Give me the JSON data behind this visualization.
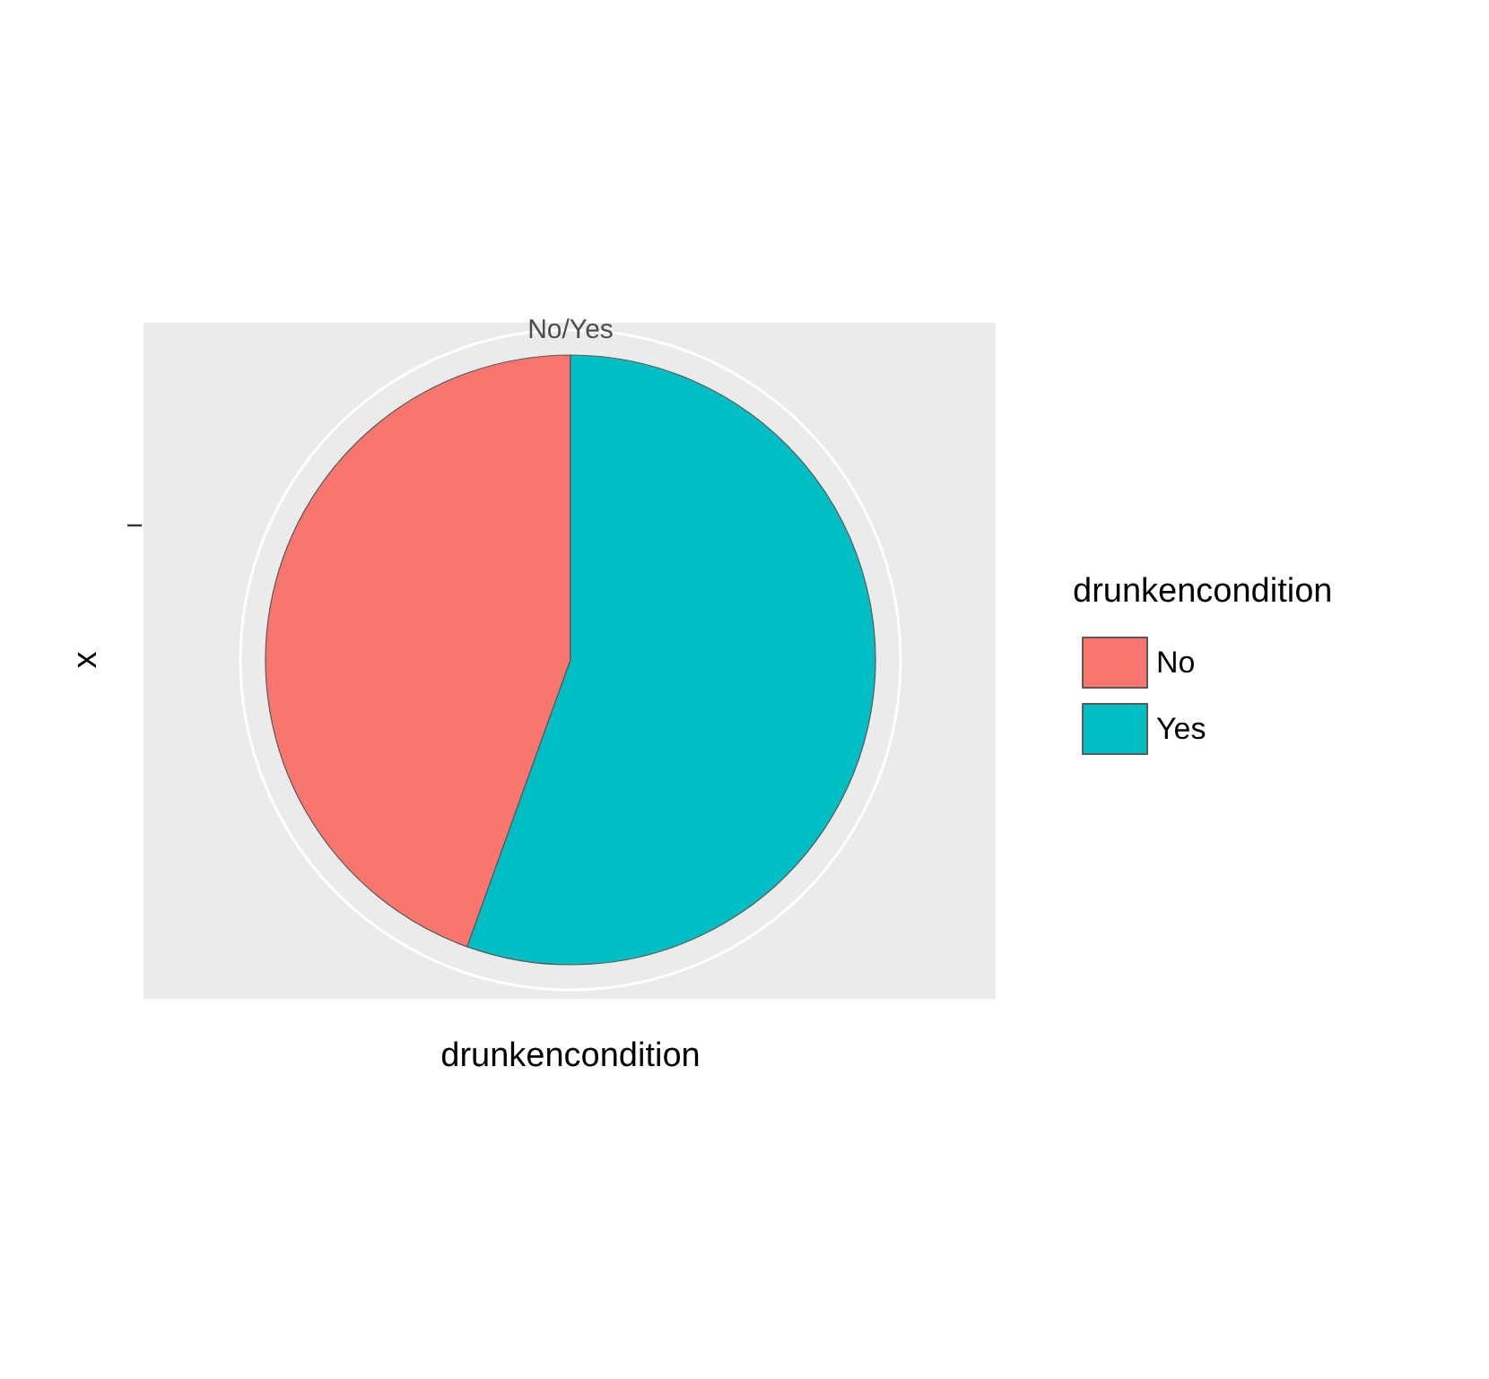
{
  "chart_data": {
    "type": "pie",
    "categories": [
      "No",
      "Yes"
    ],
    "values": [
      44.5,
      55.5
    ],
    "colors": [
      "#f8766d",
      "#00bfc4"
    ],
    "xlabel": "drunkencondition",
    "ylabel": "x",
    "legend_title": "drunkencondition",
    "legend": "right",
    "grid": true,
    "annotations": [
      "No/Yes"
    ]
  }
}
